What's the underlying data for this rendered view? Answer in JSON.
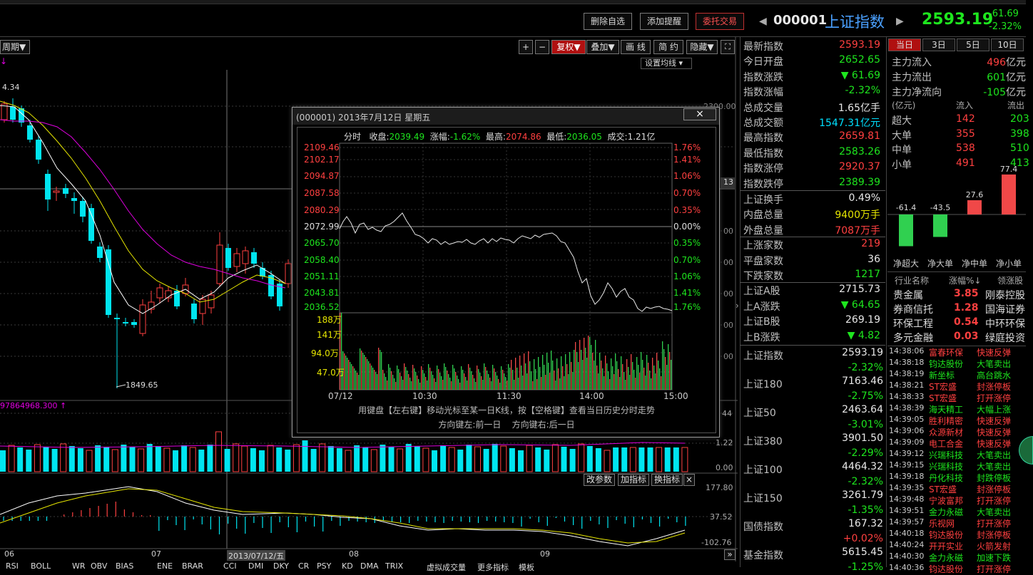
{
  "toolbar": {
    "delete_fav": "删除自选",
    "add_alert": "添加提醒",
    "trade": "委托交易",
    "code": "000001",
    "name": "上证指数",
    "price": "2593.19",
    "change": "-61.69",
    "change_pct": "-2.32%"
  },
  "chart_controls": {
    "period": "周期",
    "zoom_in": "+",
    "zoom_out": "−",
    "restore": "复权",
    "overlay": "叠加",
    "draw": "画 线",
    "brief": "简 约",
    "hide": "隐藏",
    "fullscreen": "⛶",
    "ma_setting": "设置均线",
    "high_label": "4.34",
    "low_label": "1849.65",
    "volume_label": "97864968.300",
    "right_axis": [
      "2300.00",
      "13",
      "00",
      "00",
      "00",
      "00",
      "00",
      "00"
    ],
    "vol_axis": [
      "44",
      "1.22",
      "0.00"
    ],
    "macd_axis": [
      "177.80",
      "37.52",
      "-102.76"
    ],
    "x_labels": [
      "06",
      "07",
      "2013/07/12/五",
      "08",
      "09"
    ],
    "indicator_buttons": [
      "改参数",
      "加指标",
      "换指标"
    ],
    "close_x": "×",
    "scroll_right": "»"
  },
  "bottom_tabs": [
    "RSI",
    "BOLL",
    "WR",
    "OBV",
    "BIAS",
    "ENE",
    "BRAR",
    "CCI",
    "DMI",
    "DKY",
    "CR",
    "PSY",
    "KD",
    "DMA",
    "TRIX",
    "虚拟成交量",
    "更多指标",
    "模板"
  ],
  "popup": {
    "title": "(000001) 2013年7月12日 星期五",
    "close": "×",
    "info_labels": {
      "fenshi": "分时",
      "close": "收盘:",
      "change": "涨幅:",
      "high": "最高:",
      "low": "最低:",
      "volume": "成交:"
    },
    "info_values": {
      "close": "2039.49",
      "change": "-1.62%",
      "high": "2074.86",
      "low": "2036.05",
      "volume": "1.21亿"
    },
    "price_axis_left": [
      "2109.46",
      "2102.17",
      "2094.87",
      "2087.58",
      "2080.29",
      "2072.99",
      "2065.70",
      "2058.40",
      "2051.11",
      "2043.81",
      "2036.52"
    ],
    "price_axis_right": [
      "1.76%",
      "1.41%",
      "1.06%",
      "0.70%",
      "0.35%",
      "0.00%",
      "0.35%",
      "0.70%",
      "1.06%",
      "1.41%",
      "1.76%"
    ],
    "vol_axis": [
      "188万",
      "141万",
      "94.0万",
      "47.0万"
    ],
    "time_axis": [
      "07/12",
      "10:30",
      "11:30",
      "14:00",
      "15:00"
    ],
    "hint1": "用键盘【左右键】移动光标至某一日K线，按【空格键】查看当日历史分时走势",
    "hint2": "方向键左:前一日    方向键右:后一日"
  },
  "quote": [
    {
      "k": "最新指数",
      "v": "2593.19",
      "c": "red"
    },
    {
      "k": "今日开盘",
      "v": "2652.65",
      "c": "green"
    },
    {
      "k": "指数涨跌",
      "v": "▼ 61.69",
      "c": "green"
    },
    {
      "k": "指数涨幅",
      "v": "-2.32%",
      "c": "green"
    },
    {
      "k": "总成交量",
      "v": "1.65亿手",
      "c": "white"
    },
    {
      "k": "总成交额",
      "v": "1547.31亿元",
      "c": "cyan"
    },
    {
      "k": "最高指数",
      "v": "2659.81",
      "c": "red"
    },
    {
      "k": "最低指数",
      "v": "2583.26",
      "c": "green"
    },
    {
      "k": "指数涨停",
      "v": "2920.37",
      "c": "red"
    },
    {
      "k": "指数跌停",
      "v": "2389.39",
      "c": "green"
    }
  ],
  "quote2": [
    {
      "k": "上证换手",
      "v": "0.49%",
      "c": "white"
    },
    {
      "k": "内盘总量",
      "v": "9400万手",
      "c": "yellow"
    },
    {
      "k": "外盘总量",
      "v": "7087万手",
      "c": "red"
    }
  ],
  "quote3": [
    {
      "k": "上涨家数",
      "v": "219",
      "c": "red"
    },
    {
      "k": "平盘家数",
      "v": "36",
      "c": "white"
    },
    {
      "k": "下跌家数",
      "v": "1217",
      "c": "green"
    }
  ],
  "quote4": [
    {
      "k": "上证A股",
      "v": "2715.73",
      "c": "white"
    },
    {
      "k": "上A涨跌",
      "v": "▼ 64.65",
      "c": "green"
    },
    {
      "k": "上证B股",
      "v": "269.19",
      "c": "white"
    },
    {
      "k": "上B涨跌",
      "v": "▼ 4.82",
      "c": "green"
    }
  ],
  "indices": [
    {
      "name": "上证指数",
      "v": "2593.19",
      "p": "-2.32%"
    },
    {
      "name": "上证180",
      "v": "7163.46",
      "p": "-2.75%"
    },
    {
      "name": "上证50",
      "v": "2463.64",
      "p": "-3.01%"
    },
    {
      "name": "上证380",
      "v": "3901.50",
      "p": "-2.29%"
    },
    {
      "name": "上证100",
      "v": "4464.32",
      "p": "-2.32%"
    },
    {
      "name": "上证150",
      "v": "3261.79",
      "p": "-1.35%"
    },
    {
      "name": "国债指数",
      "v": "167.32",
      "p": "+0.02%"
    },
    {
      "name": "基金指数",
      "v": "5615.45",
      "p": "-1.25%"
    }
  ],
  "fund": {
    "tabs": [
      "当日",
      "3日",
      "5日",
      "10日"
    ],
    "rows": [
      {
        "k": "主力流入",
        "v": "496",
        "u": "亿元",
        "c": "red"
      },
      {
        "k": "主力流出",
        "v": "601",
        "u": "亿元",
        "c": "green"
      },
      {
        "k": "主力净流向",
        "v": "-105",
        "u": "亿元",
        "c": "green"
      }
    ],
    "table_head": [
      "(亿元)",
      "流入",
      "流出"
    ],
    "table": [
      {
        "k": "超大",
        "in": "142",
        "out": "203"
      },
      {
        "k": "大单",
        "in": "355",
        "out": "398"
      },
      {
        "k": "中单",
        "in": "538",
        "out": "510"
      },
      {
        "k": "小单",
        "in": "491",
        "out": "413"
      }
    ],
    "bars": [
      {
        "label": "净超大",
        "value": -61.4,
        "text": "-61.4"
      },
      {
        "label": "净大单",
        "value": -43.5,
        "text": "-43.5"
      },
      {
        "label": "净中单",
        "value": 27.6,
        "text": "27.6"
      },
      {
        "label": "净小单",
        "value": 77.4,
        "text": "77.4"
      }
    ]
  },
  "sector": {
    "head": [
      "行业名称",
      "涨幅%↓",
      "领涨股"
    ],
    "rows": [
      {
        "n": "贵金属",
        "p": "3.85",
        "s": "刚泰控股"
      },
      {
        "n": "券商信托",
        "p": "1.28",
        "s": "国海证券"
      },
      {
        "n": "环保工程",
        "p": "0.54",
        "s": "中环环保"
      },
      {
        "n": "多元金融",
        "p": "0.03",
        "s": "绿庭投资"
      }
    ]
  },
  "alerts": [
    {
      "t": "14:38:06",
      "s": "富春环保",
      "e": "快速反弹",
      "c": "red"
    },
    {
      "t": "14:38:18",
      "s": "钧达股份",
      "e": "大笔卖出",
      "c": "green"
    },
    {
      "t": "14:38:19",
      "s": "新坐标",
      "e": "高台跳水",
      "c": "green"
    },
    {
      "t": "14:38:21",
      "s": "ST宏盛",
      "e": "封涨停板",
      "c": "red"
    },
    {
      "t": "14:38:33",
      "s": "ST宏盛",
      "e": "打开涨停",
      "c": "red"
    },
    {
      "t": "14:38:39",
      "s": "海天精工",
      "e": "大幅上涨",
      "c": "green"
    },
    {
      "t": "14:39:05",
      "s": "胜利精密",
      "e": "快速反弹",
      "c": "red"
    },
    {
      "t": "14:39:06",
      "s": "众源新材",
      "e": "快速反弹",
      "c": "red"
    },
    {
      "t": "14:39:09",
      "s": "电工合金",
      "e": "快速反弹",
      "c": "red"
    },
    {
      "t": "14:39:12",
      "s": "兴瑞科技",
      "e": "大笔卖出",
      "c": "green"
    },
    {
      "t": "14:39:15",
      "s": "兴瑞科技",
      "e": "大笔卖出",
      "c": "green"
    },
    {
      "t": "14:39:18",
      "s": "丹化科技",
      "e": "封跌停板",
      "c": "green"
    },
    {
      "t": "14:39:35",
      "s": "ST宏盛",
      "e": "封涨停板",
      "c": "red"
    },
    {
      "t": "14:39:48",
      "s": "宁波富邦",
      "e": "打开涨停",
      "c": "red"
    },
    {
      "t": "14:39:51",
      "s": "金力永磁",
      "e": "大笔卖出",
      "c": "green"
    },
    {
      "t": "14:39:57",
      "s": "乐视网",
      "e": "打开涨停",
      "c": "red"
    },
    {
      "t": "14:40:18",
      "s": "钧达股份",
      "e": "封涨停板",
      "c": "red"
    },
    {
      "t": "14:40:24",
      "s": "开开实业",
      "e": "火箭发射",
      "c": "red"
    },
    {
      "t": "14:40:30",
      "s": "金力永磁",
      "e": "加速下跌",
      "c": "green"
    },
    {
      "t": "14:40:36",
      "s": "钧达股份",
      "e": "打开涨停",
      "c": "red"
    }
  ],
  "colors": {
    "up": "#ff4040",
    "down": "#1ee61e",
    "cyan_bar": "#00e5f0",
    "ma5": "#ffffff",
    "ma10": "#e6e600",
    "ma20": "#e000e0"
  }
}
